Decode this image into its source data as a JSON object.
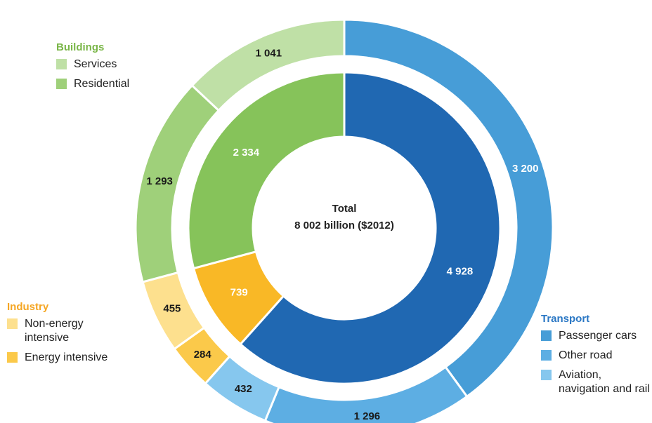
{
  "chart_data": {
    "type": "nested-donut",
    "center_label": [
      "Total",
      "8 002 billion ($2012)"
    ],
    "groups": [
      {
        "name": "Transport",
        "title_color": "#2a77c4",
        "color": "#2068b2",
        "value": 4928,
        "value_label": "4 928",
        "label_color": "#ffffff",
        "items": [
          {
            "name": "Passenger cars",
            "color": "#479dd7",
            "value": 3200,
            "value_label": "3 200",
            "label_color": "#ffffff"
          },
          {
            "name": "Other road",
            "color": "#5daee3",
            "value": 1296,
            "value_label": "1 296",
            "label_color": "#1a1a1a"
          },
          {
            "name": "Aviation, navigation and rail",
            "color": "#86c7ee",
            "value": 432,
            "value_label": "432",
            "label_color": "#1a1a1a"
          }
        ]
      },
      {
        "name": "Industry",
        "title_color": "#f5a623",
        "color": "#f9b826",
        "value": 739,
        "value_label": "739",
        "label_color": "#ffffff",
        "items": [
          {
            "name": "Energy intensive",
            "color": "#fbc94a",
            "value": 284,
            "value_label": "284",
            "label_color": "#1a1a1a"
          },
          {
            "name": "Non-energy intensive",
            "color": "#fde08e",
            "value": 455,
            "value_label": "455",
            "label_color": "#1a1a1a"
          }
        ]
      },
      {
        "name": "Buildings",
        "title_color": "#7ab648",
        "color": "#86c35a",
        "value": 2334,
        "value_label": "2 334",
        "label_color": "#ffffff",
        "items": [
          {
            "name": "Residential",
            "color": "#9fd07a",
            "value": 1293,
            "value_label": "1 293",
            "label_color": "#1a1a1a"
          },
          {
            "name": "Services",
            "color": "#bfe0a6",
            "value": 1041,
            "value_label": "1 041",
            "label_color": "#1a1a1a"
          }
        ]
      }
    ]
  }
}
